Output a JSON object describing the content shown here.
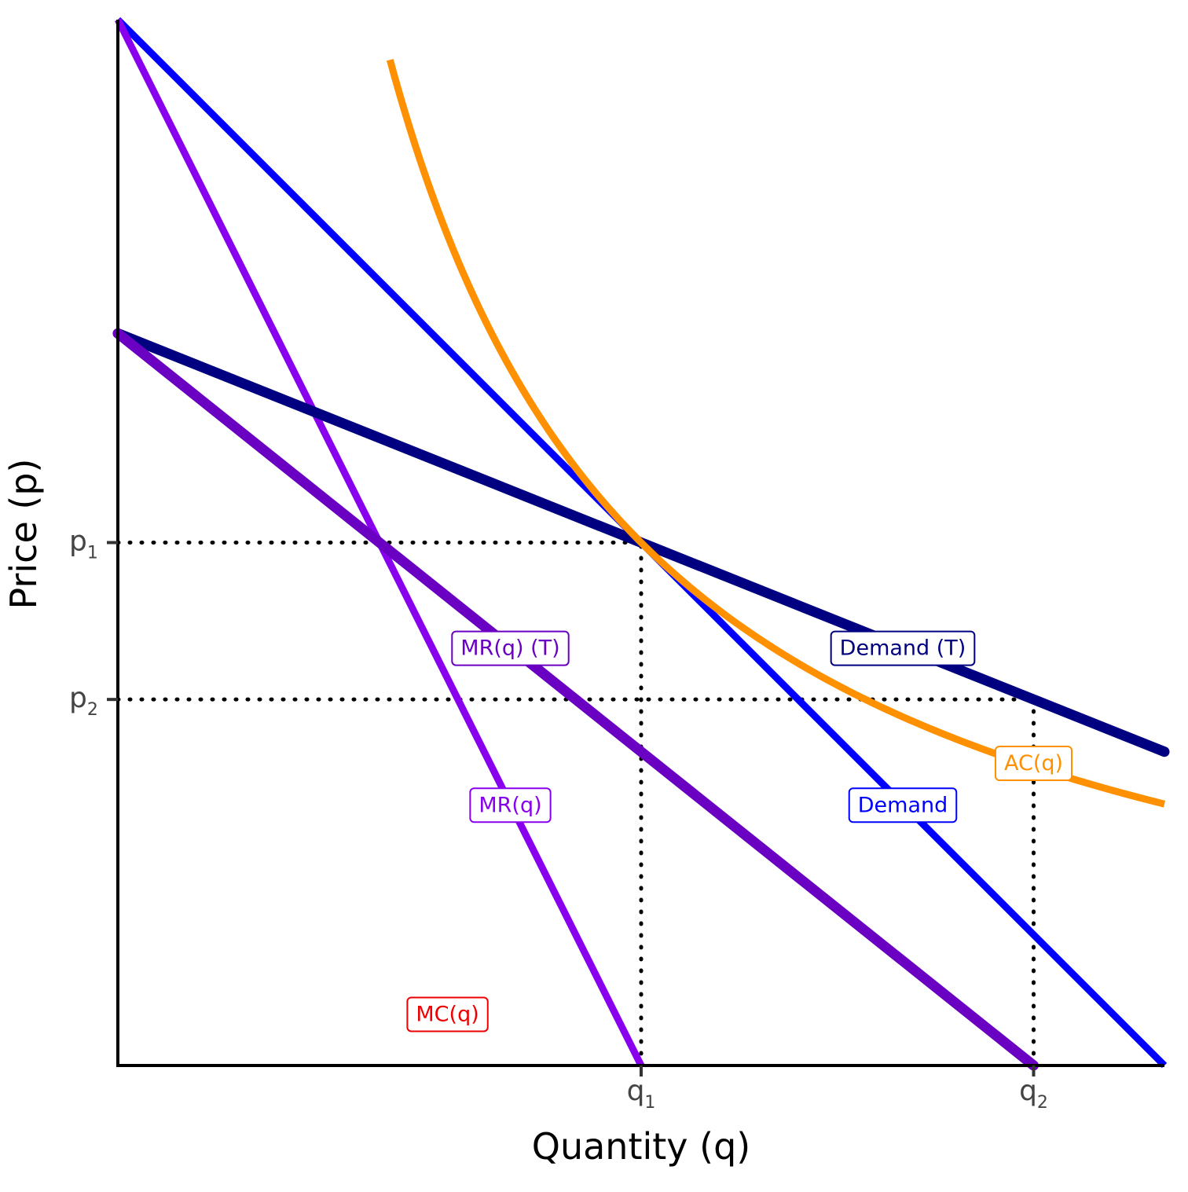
{
  "chart_data": {
    "type": "line",
    "title": "",
    "xlabel": "Quantity (q)",
    "ylabel": "Price (p)",
    "xlim": [
      0,
      10
    ],
    "ylim": [
      0,
      10
    ],
    "grid": false,
    "legend": "none",
    "x_ticks": [
      {
        "base": "q",
        "sub": "1",
        "value": 5.0
      },
      {
        "base": "q",
        "sub": "2",
        "value": 8.75
      }
    ],
    "y_ticks": [
      {
        "base": "p",
        "sub": "1",
        "value": 5.0
      },
      {
        "base": "p",
        "sub": "2",
        "value": 3.5
      }
    ],
    "guide_lines": [
      {
        "kind": "horizontal",
        "y": 5.0,
        "x_to": 5.0
      },
      {
        "kind": "vertical",
        "x": 5.0,
        "y_to": 5.0
      },
      {
        "kind": "horizontal",
        "y": 3.5,
        "x_to": 8.75
      },
      {
        "kind": "vertical",
        "x": 8.75,
        "y_to": 3.5
      }
    ],
    "series": [
      {
        "name": "Demand",
        "color": "#0000ff",
        "width": 9,
        "points": [
          [
            0,
            10
          ],
          [
            10,
            0
          ]
        ],
        "label_pos": [
          7.5,
          2.5
        ]
      },
      {
        "name": "MR(q)",
        "color": "#8800ee",
        "width": 9,
        "points": [
          [
            0,
            10
          ],
          [
            5,
            0
          ]
        ],
        "label_pos": [
          3.75,
          2.5
        ]
      },
      {
        "name": "Demand (T)",
        "color": "#000080",
        "width": 13,
        "points": [
          [
            0,
            7
          ],
          [
            10,
            3
          ]
        ],
        "label_pos": [
          7.5,
          4.0
        ]
      },
      {
        "name": "MR(q) (T)",
        "color": "#6a00c2",
        "width": 13,
        "points": [
          [
            0,
            7
          ],
          [
            8.75,
            0
          ]
        ],
        "label_pos": [
          3.75,
          4.0
        ]
      },
      {
        "name": "AC(q)",
        "color": "#ff9000",
        "width": 9,
        "ac_fixed_cost": 25,
        "x_range": [
          2.6,
          10
        ],
        "label_pos": [
          8.75,
          2.9
        ]
      },
      {
        "name": "MC(q)",
        "color": "#ee0000",
        "width": 4,
        "points": [
          [
            0,
            0
          ],
          [
            10,
            0
          ]
        ],
        "label_pos": [
          3.15,
          0.5
        ]
      }
    ]
  }
}
